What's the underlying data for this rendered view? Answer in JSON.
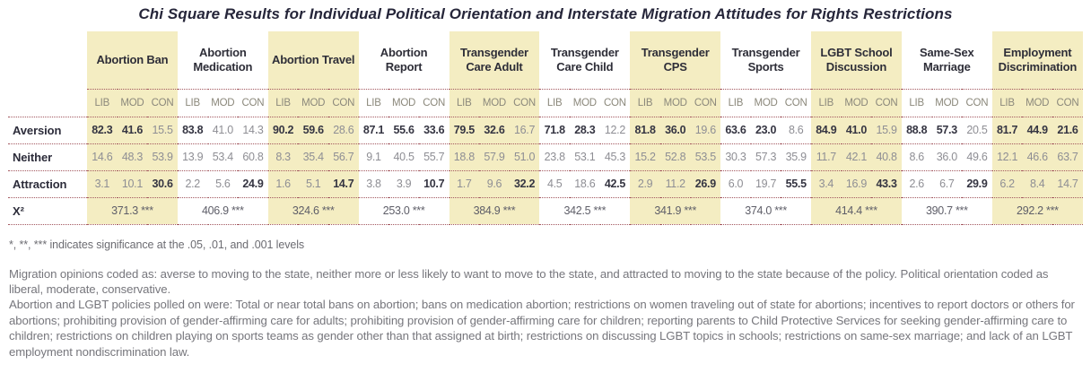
{
  "title": "Chi Square Results for Individual Political Orientation and Interstate Migration Attitudes for Rights Restrictions",
  "colors": {
    "highlight": "#f4edc2",
    "dotted_border": "#a2565e",
    "title_text": "#26263a",
    "bold_value_text": "#353542",
    "light_value_text": "#8e8e94",
    "note_text": "#76767c"
  },
  "chart_data": {
    "type": "table",
    "title": "Chi Square Results for Individual Political Orientation and Interstate Migration Attitudes for Rights Restrictions",
    "subcolumns": [
      "LIB",
      "MOD",
      "CON"
    ],
    "rows": [
      {
        "key": "aversion",
        "label": "Aversion"
      },
      {
        "key": "neither",
        "label": "Neither"
      },
      {
        "key": "attraction",
        "label": "Attraction"
      }
    ],
    "chi_label": "X²",
    "columns": [
      {
        "label": "Abortion Ban",
        "highlight": true,
        "aversion": [
          "82.3",
          "41.6",
          "15.5"
        ],
        "aversion_bold": [
          true,
          true,
          false
        ],
        "neither": [
          "14.6",
          "48.3",
          "53.9"
        ],
        "attraction": [
          "3.1",
          "10.1",
          "30.6"
        ],
        "attraction_bold": [
          false,
          false,
          true
        ],
        "chi": "371.3 ***"
      },
      {
        "label": "Abortion Medication",
        "highlight": false,
        "aversion": [
          "83.8",
          "41.0",
          "14.3"
        ],
        "aversion_bold": [
          true,
          false,
          false
        ],
        "neither": [
          "13.9",
          "53.4",
          "60.8"
        ],
        "attraction": [
          "2.2",
          "5.6",
          "24.9"
        ],
        "attraction_bold": [
          false,
          false,
          true
        ],
        "chi": "406.9 ***"
      },
      {
        "label": "Abortion Travel",
        "highlight": true,
        "aversion": [
          "90.2",
          "59.6",
          "28.6"
        ],
        "aversion_bold": [
          true,
          true,
          false
        ],
        "neither": [
          "8.3",
          "35.4",
          "56.7"
        ],
        "attraction": [
          "1.6",
          "5.1",
          "14.7"
        ],
        "attraction_bold": [
          false,
          false,
          true
        ],
        "chi": "324.6 ***"
      },
      {
        "label": "Abortion Report",
        "highlight": false,
        "aversion": [
          "87.1",
          "55.6",
          "33.6"
        ],
        "aversion_bold": [
          true,
          true,
          true
        ],
        "neither": [
          "9.1",
          "40.5",
          "55.7"
        ],
        "attraction": [
          "3.8",
          "3.9",
          "10.7"
        ],
        "attraction_bold": [
          false,
          false,
          true
        ],
        "chi": "253.0 ***"
      },
      {
        "label": "Transgender Care Adult",
        "highlight": true,
        "aversion": [
          "79.5",
          "32.6",
          "16.7"
        ],
        "aversion_bold": [
          true,
          true,
          false
        ],
        "neither": [
          "18.8",
          "57.9",
          "51.0"
        ],
        "attraction": [
          "1.7",
          "9.6",
          "32.2"
        ],
        "attraction_bold": [
          false,
          false,
          true
        ],
        "chi": "384.9 ***"
      },
      {
        "label": "Transgender Care Child",
        "highlight": false,
        "aversion": [
          "71.8",
          "28.3",
          "12.2"
        ],
        "aversion_bold": [
          true,
          true,
          false
        ],
        "neither": [
          "23.8",
          "53.1",
          "45.3"
        ],
        "attraction": [
          "4.5",
          "18.6",
          "42.5"
        ],
        "attraction_bold": [
          false,
          false,
          true
        ],
        "chi": "342.5 ***"
      },
      {
        "label": "Transgender CPS",
        "highlight": true,
        "aversion": [
          "81.8",
          "36.0",
          "19.6"
        ],
        "aversion_bold": [
          true,
          true,
          false
        ],
        "neither": [
          "15.2",
          "52.8",
          "53.5"
        ],
        "attraction": [
          "2.9",
          "11.2",
          "26.9"
        ],
        "attraction_bold": [
          false,
          false,
          true
        ],
        "chi": "341.9 ***"
      },
      {
        "label": "Transgender Sports",
        "highlight": false,
        "aversion": [
          "63.6",
          "23.0",
          "8.6"
        ],
        "aversion_bold": [
          true,
          true,
          false
        ],
        "neither": [
          "30.3",
          "57.3",
          "35.9"
        ],
        "attraction": [
          "6.0",
          "19.7",
          "55.5"
        ],
        "attraction_bold": [
          false,
          false,
          true
        ],
        "chi": "374.0 ***"
      },
      {
        "label": "LGBT School Discussion",
        "highlight": true,
        "aversion": [
          "84.9",
          "41.0",
          "15.9"
        ],
        "aversion_bold": [
          true,
          true,
          false
        ],
        "neither": [
          "11.7",
          "42.1",
          "40.8"
        ],
        "attraction": [
          "3.4",
          "16.9",
          "43.3"
        ],
        "attraction_bold": [
          false,
          false,
          true
        ],
        "chi": "414.4 ***"
      },
      {
        "label": "Same-Sex Marriage",
        "highlight": false,
        "aversion": [
          "88.8",
          "57.3",
          "20.5"
        ],
        "aversion_bold": [
          true,
          true,
          false
        ],
        "neither": [
          "8.6",
          "36.0",
          "49.6"
        ],
        "attraction": [
          "2.6",
          "6.7",
          "29.9"
        ],
        "attraction_bold": [
          false,
          false,
          true
        ],
        "chi": "390.7 ***"
      },
      {
        "label": "Employment Discrimination",
        "highlight": true,
        "aversion": [
          "81.7",
          "44.9",
          "21.6"
        ],
        "aversion_bold": [
          true,
          true,
          true
        ],
        "neither": [
          "12.1",
          "46.6",
          "63.7"
        ],
        "attraction": [
          "6.2",
          "8.4",
          "14.7"
        ],
        "attraction_bold": [
          false,
          false,
          false
        ],
        "chi": "292.2 ***"
      }
    ]
  },
  "notes": {
    "significance": "*, **, *** indicates significance at the .05, .01, and .001 levels",
    "coding": "Migration opinions coded as: averse to moving to the state, neither more or less likely to want to move to the state, and attracted to moving to the state because of the policy. Political orientation coded as liberal, moderate, conservative.",
    "policies": "Abortion and LGBT policies polled on were: Total or near total bans on abortion; bans on medication abortion; restrictions on women traveling out of state for abortions; incentives to report doctors or others for abortions; prohibiting provision of gender-affirming care for adults; prohibiting provision of gender-affirming care for children; reporting parents to Child Protective Services for seeking gender-affirming care to children; restrictions on children playing on sports teams as gender other than that assigned at birth; restrictions on discussing LGBT topics in schools; restrictions on same-sex marriage; and lack of an LGBT employment nondiscrimination law."
  }
}
